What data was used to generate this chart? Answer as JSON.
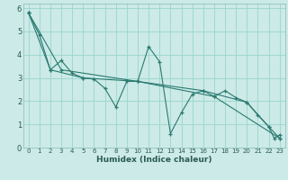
{
  "xlabel": "Humidex (Indice chaleur)",
  "bg_color": "#cceae7",
  "grid_color": "#99d5d0",
  "line_color": "#2a7a70",
  "xlim": [
    -0.5,
    23.5
  ],
  "ylim": [
    0,
    6.2
  ],
  "xticks": [
    0,
    1,
    2,
    3,
    4,
    5,
    6,
    7,
    8,
    9,
    10,
    11,
    12,
    13,
    14,
    15,
    16,
    17,
    18,
    19,
    20,
    21,
    22,
    23
  ],
  "yticks": [
    0,
    1,
    2,
    3,
    4,
    5,
    6
  ],
  "series1": [
    [
      0,
      5.8
    ],
    [
      1,
      4.85
    ],
    [
      2,
      3.35
    ],
    [
      3,
      3.75
    ],
    [
      4,
      3.2
    ],
    [
      5,
      3.0
    ],
    [
      6,
      2.95
    ],
    [
      7,
      2.55
    ],
    [
      8,
      1.75
    ],
    [
      9,
      2.85
    ],
    [
      10,
      2.85
    ],
    [
      11,
      4.35
    ],
    [
      12,
      3.7
    ],
    [
      13,
      0.6
    ],
    [
      14,
      1.5
    ],
    [
      15,
      2.3
    ],
    [
      16,
      2.45
    ],
    [
      17,
      2.2
    ],
    [
      18,
      2.45
    ],
    [
      19,
      2.15
    ],
    [
      20,
      1.95
    ],
    [
      21,
      1.4
    ],
    [
      22,
      0.9
    ],
    [
      22.5,
      0.4
    ],
    [
      23,
      0.55
    ]
  ],
  "series2": [
    [
      0,
      5.8
    ],
    [
      2,
      3.35
    ],
    [
      5,
      3.0
    ],
    [
      10,
      2.85
    ],
    [
      16,
      2.45
    ],
    [
      20,
      1.95
    ],
    [
      22,
      0.9
    ],
    [
      23,
      0.4
    ]
  ],
  "series3": [
    [
      0,
      5.8
    ],
    [
      3,
      3.35
    ],
    [
      10,
      2.85
    ],
    [
      17,
      2.2
    ],
    [
      23,
      0.4
    ]
  ]
}
